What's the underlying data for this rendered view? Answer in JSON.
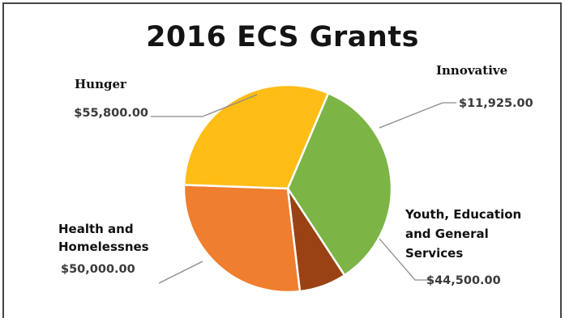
{
  "chart_data": {
    "type": "pie",
    "title": "2016 ECS Grants",
    "slices": [
      {
        "label": "Hunger",
        "label_lines": [
          "Hunger"
        ],
        "value_label": "$55,800.00",
        "value": 55800,
        "color": "#7cb446"
      },
      {
        "label": "Innovative",
        "label_lines": [
          "Innovative"
        ],
        "value_label": "$11,925.00",
        "value": 11925,
        "color": "#9a4214"
      },
      {
        "label": "Youth, Education and General Services",
        "label_lines": [
          "Youth, Education",
          "and General",
          "Services"
        ],
        "value_label": "$44,500.00",
        "value": 44500,
        "color": "#ef7e2e"
      },
      {
        "label": "Health and Homelessnes",
        "label_lines": [
          "Health and",
          "Homelessnes"
        ],
        "value_label": "$50,000.00",
        "value": 50000,
        "color": "#ffbd16"
      }
    ]
  }
}
